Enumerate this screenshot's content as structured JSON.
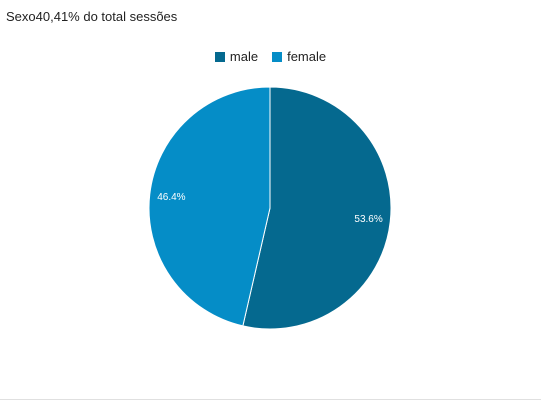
{
  "header": {
    "title": "Sexo",
    "subtitle": "40,41% do total sessões"
  },
  "chart_data": {
    "type": "pie",
    "categories": [
      "male",
      "female"
    ],
    "values": [
      53.6,
      46.4
    ],
    "value_labels": [
      "53.6%",
      "46.4%"
    ],
    "colors": [
      "#05698f",
      "#058dc7"
    ],
    "legend_position": "top-center",
    "start_angle_deg": 0,
    "direction": "clockwise"
  }
}
